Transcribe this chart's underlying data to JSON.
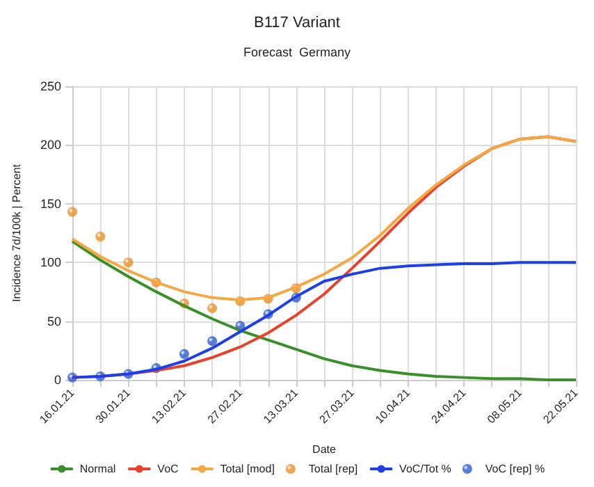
{
  "chart_data": {
    "type": "line",
    "title": "B117 Variant",
    "subtitle": "Forecast  Germany",
    "xlabel": "Date",
    "ylabel": "Incidence 7d/100k | Percent",
    "categories": [
      "16.01.21",
      null,
      "30.01.21",
      null,
      "13.02.21",
      null,
      "27.02.21",
      null,
      "13.03.21",
      null,
      "27.03.21",
      null,
      "10.04.21",
      null,
      "24.04.21",
      null,
      "08.05.21",
      null,
      "22.05.21"
    ],
    "series": [
      {
        "name": "Normal",
        "color": "#3a8f2a",
        "values": [
          118,
          102,
          88,
          75,
          63,
          52,
          42,
          34,
          26,
          18,
          12,
          8,
          5,
          3,
          2,
          1,
          1,
          0,
          0
        ]
      },
      {
        "name": "VoC",
        "color": "#e8412c",
        "values": [
          2,
          3,
          5,
          8,
          12,
          19,
          28,
          40,
          55,
          73,
          95,
          118,
          142,
          164,
          182,
          197,
          205,
          207,
          203
        ]
      },
      {
        "name": "Total [mod]",
        "color": "#f5a742",
        "values": [
          120,
          105,
          93,
          83,
          75,
          70,
          68,
          70,
          79,
          90,
          104,
          123,
          146,
          166,
          183,
          197,
          205,
          207,
          203
        ]
      },
      {
        "type": "scatter",
        "marker": "circle",
        "name": "Total [rep]",
        "color": "#e8902a",
        "values": [
          143,
          122,
          100,
          83,
          65,
          61,
          67,
          69,
          78,
          null,
          null,
          null,
          null,
          null,
          null,
          null,
          null,
          null,
          null
        ]
      },
      {
        "name": "VoC/Tot %",
        "color": "#1f3fe6",
        "values": [
          2,
          3,
          5,
          9,
          16,
          27,
          41,
          55,
          71,
          84,
          90,
          95,
          97,
          98,
          99,
          99,
          100,
          100,
          100
        ]
      },
      {
        "type": "scatter",
        "marker": "circle",
        "name": "VoC [rep] %",
        "color": "#2e5dd0",
        "values": [
          2,
          3,
          5,
          10,
          22,
          33,
          46,
          56,
          70,
          null,
          null,
          null,
          null,
          null,
          null,
          null,
          null,
          null,
          null
        ]
      }
    ],
    "ylim": [
      0,
      250
    ],
    "yticks": [
      0,
      50,
      100,
      150,
      200,
      250
    ],
    "grid": true,
    "legend": "bottom",
    "marker": "none"
  }
}
